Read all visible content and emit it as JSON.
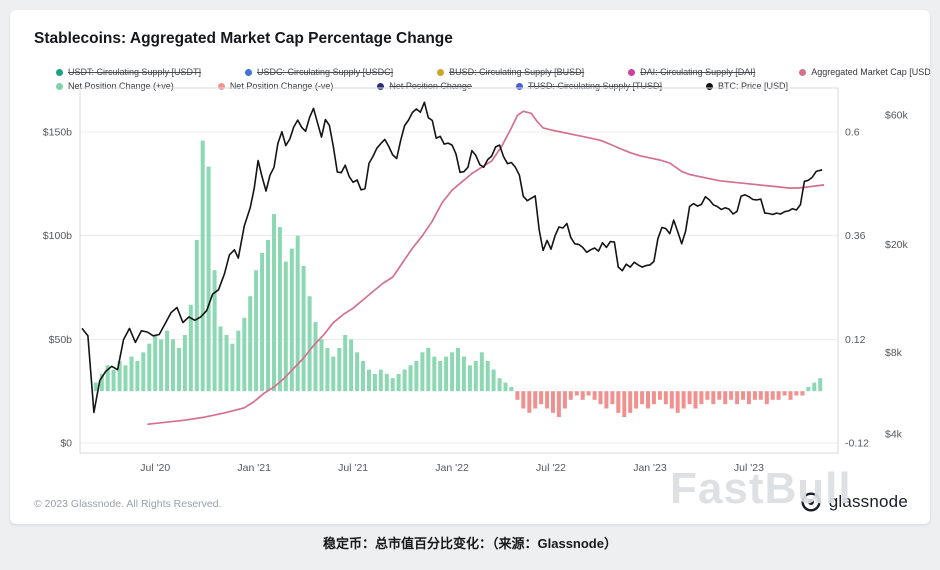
{
  "card": {
    "copyright": "© 2023 Glassnode. All Rights Reserved.",
    "watermark": "FastBull",
    "logo_text": "glassnode"
  },
  "caption": "稳定币：总市值百分比变化：（来源：Glassnode）",
  "chart_data": {
    "type": "line",
    "title": "Stablecoins: Aggregated Market Cap Percentage Change",
    "x_domain": [
      2020.12,
      2023.95
    ],
    "axes": {
      "left": {
        "labels": [
          "$150b",
          "$100b",
          "$50b",
          "$0"
        ],
        "values": [
          150,
          100,
          50,
          0
        ]
      },
      "right_inner": {
        "labels": [
          "0.6",
          "0.36",
          "0.12",
          "-0.12"
        ],
        "values": [
          0.6,
          0.36,
          0.12,
          -0.12
        ]
      },
      "right_outer": {
        "labels": [
          "$60k",
          "$20k",
          "$8k",
          "$4k"
        ],
        "values": [
          60000,
          20000,
          8000,
          4000
        ]
      },
      "x": {
        "labels": [
          "Jul '20",
          "Jan '21",
          "Jul '21",
          "Jan '22",
          "Jul '22",
          "Jan '23",
          "Jul '23"
        ],
        "values": [
          2020.5,
          2021.0,
          2021.5,
          2022.0,
          2022.5,
          2023.0,
          2023.5
        ]
      }
    },
    "colors": {
      "positive": "#8cd8b2",
      "negative": "#f0918f",
      "market_cap": "#d4708e",
      "btc": "#141414",
      "grid": "#ececec",
      "border": "#d8d8d8",
      "axis_text": "#55585c"
    },
    "legend": {
      "rows": [
        [
          {
            "label": "USDT: Circulating Supply [USDT]",
            "color": "#19a27c",
            "enabled": false
          },
          {
            "label": "USDC: Circulating Supply [USDC]",
            "color": "#3f74d6",
            "enabled": false
          },
          {
            "label": "BUSD: Circulating Supply [BUSD]",
            "color": "#caa62a",
            "enabled": false
          },
          {
            "label": "DAI: Circulating Supply [DAI]",
            "color": "#cf3f9f",
            "enabled": false
          },
          {
            "label": "Aggregated Market Cap [USD]",
            "color": "#d4708e",
            "enabled": true
          }
        ],
        [
          {
            "label": "Net Position Change (+ve)",
            "color": "#7fd3a8",
            "enabled": true
          },
          {
            "label": "Net Position Change (-ve)",
            "color": "#f2938f",
            "enabled": true
          },
          {
            "label": "Net Position Change",
            "color": "#2a2d7c",
            "enabled": false
          },
          {
            "label": "TUSD: Circulating Supply [TUSD]",
            "color": "#4a5cd8",
            "enabled": false
          },
          {
            "label": "BTC: Price [USD]",
            "color": "#111111",
            "enabled": true
          }
        ]
      ]
    },
    "aggregated_market_cap": [
      [
        2020.46,
        9
      ],
      [
        2020.55,
        10
      ],
      [
        2020.65,
        11
      ],
      [
        2020.75,
        12.5
      ],
      [
        2020.85,
        14.5
      ],
      [
        2020.95,
        17
      ],
      [
        2021.0,
        20
      ],
      [
        2021.05,
        24
      ],
      [
        2021.1,
        27
      ],
      [
        2021.15,
        31
      ],
      [
        2021.2,
        36
      ],
      [
        2021.25,
        41
      ],
      [
        2021.3,
        47
      ],
      [
        2021.35,
        52
      ],
      [
        2021.4,
        58
      ],
      [
        2021.45,
        62
      ],
      [
        2021.5,
        65
      ],
      [
        2021.55,
        69
      ],
      [
        2021.6,
        73
      ],
      [
        2021.65,
        77
      ],
      [
        2021.7,
        80
      ],
      [
        2021.75,
        87
      ],
      [
        2021.8,
        94
      ],
      [
        2021.85,
        100
      ],
      [
        2021.9,
        107
      ],
      [
        2021.95,
        116
      ],
      [
        2022.0,
        122
      ],
      [
        2022.05,
        126
      ],
      [
        2022.1,
        130
      ],
      [
        2022.15,
        133
      ],
      [
        2022.2,
        136
      ],
      [
        2022.25,
        143
      ],
      [
        2022.3,
        152
      ],
      [
        2022.33,
        158
      ],
      [
        2022.36,
        160
      ],
      [
        2022.4,
        159
      ],
      [
        2022.43,
        155
      ],
      [
        2022.46,
        152
      ],
      [
        2022.5,
        151
      ],
      [
        2022.55,
        150
      ],
      [
        2022.6,
        149
      ],
      [
        2022.65,
        148
      ],
      [
        2022.7,
        147
      ],
      [
        2022.75,
        146
      ],
      [
        2022.8,
        144
      ],
      [
        2022.85,
        142
      ],
      [
        2022.9,
        140
      ],
      [
        2022.95,
        138.5
      ],
      [
        2023.0,
        137.5
      ],
      [
        2023.05,
        136.5
      ],
      [
        2023.1,
        135
      ],
      [
        2023.13,
        133
      ],
      [
        2023.16,
        131
      ],
      [
        2023.2,
        129.5
      ],
      [
        2023.25,
        128.5
      ],
      [
        2023.3,
        127.5
      ],
      [
        2023.35,
        126.5
      ],
      [
        2023.4,
        126
      ],
      [
        2023.45,
        125.5
      ],
      [
        2023.5,
        125
      ],
      [
        2023.55,
        124.5
      ],
      [
        2023.6,
        124
      ],
      [
        2023.65,
        123.5
      ],
      [
        2023.7,
        123
      ],
      [
        2023.75,
        123
      ],
      [
        2023.8,
        123.5
      ],
      [
        2023.84,
        124
      ],
      [
        2023.88,
        124.5
      ]
    ],
    "btc_price": [
      [
        2020.13,
        9800
      ],
      [
        2020.16,
        9200
      ],
      [
        2020.19,
        4800
      ],
      [
        2020.22,
        6300
      ],
      [
        2020.25,
        6800
      ],
      [
        2020.28,
        7100
      ],
      [
        2020.31,
        6900
      ],
      [
        2020.34,
        8900
      ],
      [
        2020.37,
        9800
      ],
      [
        2020.4,
        8700
      ],
      [
        2020.43,
        9600
      ],
      [
        2020.46,
        9500
      ],
      [
        2020.49,
        9200
      ],
      [
        2020.52,
        9300
      ],
      [
        2020.55,
        10200
      ],
      [
        2020.58,
        11200
      ],
      [
        2020.61,
        11700
      ],
      [
        2020.64,
        10300
      ],
      [
        2020.67,
        10800
      ],
      [
        2020.7,
        10500
      ],
      [
        2020.73,
        10800
      ],
      [
        2020.76,
        11400
      ],
      [
        2020.79,
        13100
      ],
      [
        2020.82,
        13600
      ],
      [
        2020.85,
        15600
      ],
      [
        2020.875,
        18300
      ],
      [
        2020.9,
        19100
      ],
      [
        2020.92,
        17800
      ],
      [
        2020.95,
        23400
      ],
      [
        2020.98,
        27300
      ],
      [
        2021.0,
        32200
      ],
      [
        2021.02,
        40800
      ],
      [
        2021.04,
        35500
      ],
      [
        2021.06,
        31500
      ],
      [
        2021.08,
        36000
      ],
      [
        2021.1,
        38500
      ],
      [
        2021.12,
        47200
      ],
      [
        2021.14,
        52100
      ],
      [
        2021.16,
        46300
      ],
      [
        2021.18,
        49000
      ],
      [
        2021.2,
        54200
      ],
      [
        2021.22,
        57500
      ],
      [
        2021.24,
        54100
      ],
      [
        2021.26,
        52300
      ],
      [
        2021.28,
        58900
      ],
      [
        2021.3,
        63500
      ],
      [
        2021.32,
        56200
      ],
      [
        2021.34,
        49800
      ],
      [
        2021.36,
        57800
      ],
      [
        2021.38,
        55000
      ],
      [
        2021.4,
        46000
      ],
      [
        2021.42,
        37000
      ],
      [
        2021.44,
        36800
      ],
      [
        2021.46,
        39200
      ],
      [
        2021.48,
        35600
      ],
      [
        2021.5,
        33900
      ],
      [
        2021.52,
        34600
      ],
      [
        2021.54,
        31800
      ],
      [
        2021.56,
        32100
      ],
      [
        2021.58,
        39800
      ],
      [
        2021.6,
        42200
      ],
      [
        2021.62,
        45300
      ],
      [
        2021.64,
        47100
      ],
      [
        2021.66,
        48800
      ],
      [
        2021.68,
        46000
      ],
      [
        2021.7,
        42800
      ],
      [
        2021.72,
        41500
      ],
      [
        2021.74,
        48300
      ],
      [
        2021.76,
        54900
      ],
      [
        2021.78,
        57500
      ],
      [
        2021.8,
        61400
      ],
      [
        2021.82,
        63200
      ],
      [
        2021.84,
        61500
      ],
      [
        2021.86,
        66900
      ],
      [
        2021.88,
        58700
      ],
      [
        2021.9,
        57300
      ],
      [
        2021.92,
        49300
      ],
      [
        2021.94,
        50100
      ],
      [
        2021.96,
        46900
      ],
      [
        2021.98,
        47300
      ],
      [
        2022.0,
        46500
      ],
      [
        2022.02,
        43100
      ],
      [
        2022.04,
        36900
      ],
      [
        2022.06,
        37100
      ],
      [
        2022.08,
        38500
      ],
      [
        2022.1,
        44400
      ],
      [
        2022.12,
        42600
      ],
      [
        2022.14,
        39400
      ],
      [
        2022.16,
        38500
      ],
      [
        2022.18,
        41100
      ],
      [
        2022.2,
        42400
      ],
      [
        2022.22,
        45800
      ],
      [
        2022.24,
        46500
      ],
      [
        2022.26,
        42200
      ],
      [
        2022.28,
        39700
      ],
      [
        2022.3,
        40100
      ],
      [
        2022.32,
        38500
      ],
      [
        2022.34,
        36000
      ],
      [
        2022.36,
        30100
      ],
      [
        2022.38,
        29000
      ],
      [
        2022.4,
        29600
      ],
      [
        2022.42,
        30200
      ],
      [
        2022.44,
        22600
      ],
      [
        2022.46,
        19000
      ],
      [
        2022.48,
        20700
      ],
      [
        2022.5,
        19200
      ],
      [
        2022.52,
        21500
      ],
      [
        2022.54,
        23200
      ],
      [
        2022.56,
        23000
      ],
      [
        2022.58,
        23900
      ],
      [
        2022.6,
        21200
      ],
      [
        2022.62,
        20100
      ],
      [
        2022.64,
        20000
      ],
      [
        2022.66,
        19500
      ],
      [
        2022.68,
        18700
      ],
      [
        2022.7,
        19100
      ],
      [
        2022.72,
        19400
      ],
      [
        2022.74,
        18900
      ],
      [
        2022.76,
        20300
      ],
      [
        2022.78,
        19500
      ],
      [
        2022.8,
        20500
      ],
      [
        2022.82,
        20400
      ],
      [
        2022.84,
        16500
      ],
      [
        2022.86,
        16000
      ],
      [
        2022.88,
        16900
      ],
      [
        2022.9,
        16500
      ],
      [
        2022.92,
        17200
      ],
      [
        2022.94,
        16800
      ],
      [
        2022.96,
        16500
      ],
      [
        2022.98,
        16700
      ],
      [
        2023.0,
        16800
      ],
      [
        2023.02,
        17300
      ],
      [
        2023.04,
        21000
      ],
      [
        2023.06,
        23100
      ],
      [
        2023.08,
        22900
      ],
      [
        2023.1,
        21900
      ],
      [
        2023.12,
        24600
      ],
      [
        2023.14,
        22300
      ],
      [
        2023.16,
        20100
      ],
      [
        2023.18,
        22400
      ],
      [
        2023.2,
        27600
      ],
      [
        2023.22,
        28300
      ],
      [
        2023.24,
        27700
      ],
      [
        2023.26,
        28100
      ],
      [
        2023.28,
        30000
      ],
      [
        2023.3,
        29200
      ],
      [
        2023.32,
        28000
      ],
      [
        2023.34,
        27600
      ],
      [
        2023.36,
        26900
      ],
      [
        2023.38,
        27300
      ],
      [
        2023.4,
        27000
      ],
      [
        2023.42,
        25900
      ],
      [
        2023.44,
        26500
      ],
      [
        2023.46,
        30100
      ],
      [
        2023.48,
        30500
      ],
      [
        2023.5,
        30000
      ],
      [
        2023.52,
        29300
      ],
      [
        2023.54,
        29200
      ],
      [
        2023.56,
        29400
      ],
      [
        2023.58,
        26100
      ],
      [
        2023.6,
        26000
      ],
      [
        2023.62,
        25800
      ],
      [
        2023.64,
        26100
      ],
      [
        2023.66,
        25900
      ],
      [
        2023.68,
        26400
      ],
      [
        2023.7,
        26600
      ],
      [
        2023.72,
        27100
      ],
      [
        2023.74,
        26800
      ],
      [
        2023.76,
        28000
      ],
      [
        2023.78,
        34200
      ],
      [
        2023.8,
        34500
      ],
      [
        2023.82,
        35400
      ],
      [
        2023.84,
        37200
      ],
      [
        2023.87,
        37700
      ]
    ],
    "net_position_change": {
      "t0": 2020.2,
      "dt": 0.03,
      "values": [
        0.02,
        0.04,
        0.06,
        0.05,
        0.07,
        0.06,
        0.08,
        0.07,
        0.09,
        0.11,
        0.13,
        0.12,
        0.14,
        0.12,
        0.1,
        0.13,
        0.2,
        0.35,
        0.58,
        0.52,
        0.28,
        0.15,
        0.13,
        0.11,
        0.14,
        0.17,
        0.22,
        0.28,
        0.32,
        0.35,
        0.41,
        0.38,
        0.3,
        0.33,
        0.36,
        0.29,
        0.22,
        0.16,
        0.12,
        0.1,
        0.08,
        0.1,
        0.13,
        0.12,
        0.09,
        0.07,
        0.05,
        0.04,
        0.05,
        0.04,
        0.03,
        0.04,
        0.05,
        0.06,
        0.07,
        0.09,
        0.1,
        0.08,
        0.07,
        0.08,
        0.09,
        0.1,
        0.08,
        0.06,
        0.07,
        0.09,
        0.07,
        0.05,
        0.03,
        0.02,
        0.01,
        -0.02,
        -0.04,
        -0.05,
        -0.04,
        -0.03,
        -0.04,
        -0.05,
        -0.06,
        -0.04,
        -0.02,
        -0.01,
        -0.02,
        -0.01,
        -0.02,
        -0.03,
        -0.04,
        -0.03,
        -0.05,
        -0.06,
        -0.05,
        -0.04,
        -0.03,
        -0.04,
        -0.03,
        -0.02,
        -0.03,
        -0.04,
        -0.05,
        -0.04,
        -0.03,
        -0.04,
        -0.03,
        -0.02,
        -0.03,
        -0.02,
        -0.03,
        -0.02,
        -0.03,
        -0.02,
        -0.03,
        -0.02,
        -0.02,
        -0.03,
        -0.02,
        -0.02,
        -0.01,
        -0.02,
        -0.01,
        -0.01,
        0.01,
        0.02,
        0.03
      ]
    }
  }
}
